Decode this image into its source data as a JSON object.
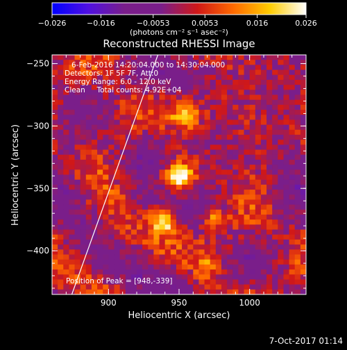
{
  "chart_data": {
    "type": "heatmap",
    "title": "Reconstructed RHESSI Image",
    "xlabel": "Heliocentric X (arcsec)",
    "ylabel": "Heliocentric Y (arcsec)",
    "xlim": [
      860,
      1040
    ],
    "ylim": [
      -435,
      -243
    ],
    "x_ticks": [
      900,
      950,
      1000
    ],
    "x_tick_labels": [
      "900",
      "950",
      "1000"
    ],
    "y_ticks": [
      -250,
      -300,
      -350,
      -400
    ],
    "y_tick_labels": [
      "−250",
      "−300",
      "−350",
      "−400"
    ],
    "colorbar": {
      "range": [
        -0.026,
        0.026
      ],
      "ticks": [
        -0.026,
        -0.016,
        -0.0053,
        0.0053,
        0.016,
        0.026
      ],
      "tick_labels": [
        "−0.026",
        "−0.016",
        "−0.0053",
        "0.0053",
        "0.016",
        "0.026"
      ],
      "unit_label": "(photons cm⁻² s⁻¹ asec⁻²)",
      "colormap": [
        "#0000ff",
        "#5010e0",
        "#7a1e8a",
        "#7a1e8a",
        "#d01818",
        "#ff6a00",
        "#ffcc00",
        "#ffffff"
      ]
    },
    "annotations": [
      "6-Feb-2016 14:20:04.000 to 14:30:04.000",
      "Detectors: 1F 5F 7F, Att:0",
      "Energy Range: 6.0 - 12.0 keV",
      "Clean     Total counts: 4.92E+04"
    ],
    "peak_label": "Position of Peak = [948,-339]",
    "peak": [
      948,
      -339
    ],
    "sources": [
      {
        "x": 948,
        "y": -339,
        "amplitude": 0.026
      },
      {
        "x": 953,
        "y": -290,
        "amplitude": 0.022
      },
      {
        "x": 938,
        "y": -374,
        "amplitude": 0.024
      },
      {
        "x": 973,
        "y": -373,
        "amplitude": 0.017
      },
      {
        "x": 967,
        "y": -413,
        "amplitude": 0.014
      }
    ],
    "limb_line": {
      "x": [
        874,
        935
      ],
      "y": [
        -435,
        -243
      ]
    },
    "grid": false
  },
  "footer_date": "7-Oct-2017 01:14"
}
